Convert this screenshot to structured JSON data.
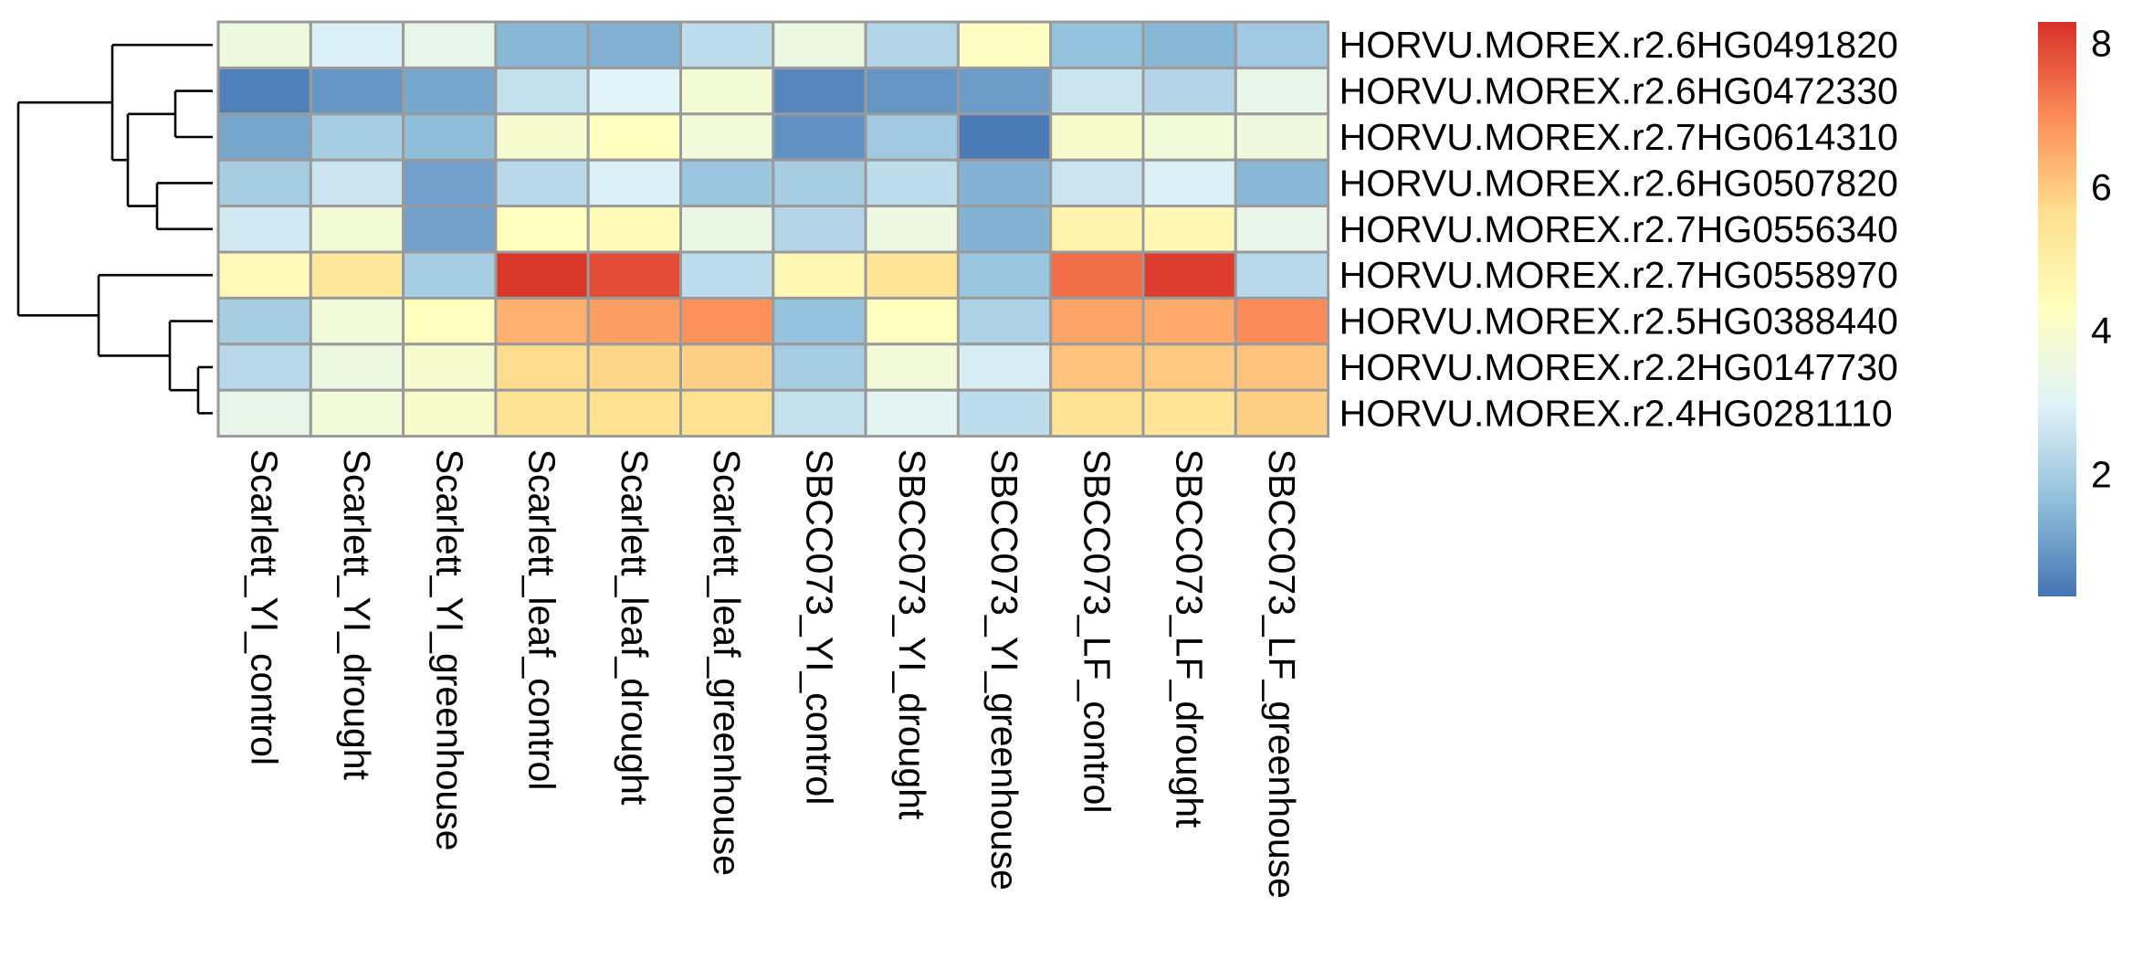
{
  "chart_data": {
    "type": "heatmap",
    "rows": [
      "HORVU.MOREX.r2.6HG0491820",
      "HORVU.MOREX.r2.6HG0472330",
      "HORVU.MOREX.r2.7HG0614310",
      "HORVU.MOREX.r2.6HG0507820",
      "HORVU.MOREX.r2.7HG0556340",
      "HORVU.MOREX.r2.7HG0558970",
      "HORVU.MOREX.r2.5HG0388440",
      "HORVU.MOREX.r2.2HG0147730",
      "HORVU.MOREX.r2.4HG0281110"
    ],
    "columns": [
      "Scarlett_YI_control",
      "Scarlett_YI_drought",
      "Scarlett_YI_greenhouse",
      "Scarlett_leaf_control",
      "Scarlett_leaf_drought",
      "Scarlett_leaf_greenhouse",
      "SBCC073_YI_control",
      "SBCC073_YI_drought",
      "SBCC073_YI_greenhouse",
      "SBCC073_LF_control",
      "SBCC073_LF_drought",
      "SBCC073_LF_greenhouse"
    ],
    "values": [
      [
        3.6,
        2.9,
        3.3,
        1.5,
        1.4,
        2.4,
        3.5,
        2.2,
        4.2,
        1.7,
        1.5,
        1.9
      ],
      [
        0.5,
        0.9,
        1.2,
        2.5,
        3.0,
        3.8,
        0.6,
        0.9,
        1.0,
        2.6,
        2.2,
        3.3
      ],
      [
        1.2,
        2.0,
        1.6,
        3.9,
        4.3,
        3.7,
        0.8,
        1.9,
        0.4,
        4.0,
        3.7,
        3.6
      ],
      [
        2.0,
        2.6,
        1.1,
        2.3,
        2.9,
        1.8,
        2.0,
        2.4,
        1.4,
        2.6,
        2.9,
        1.5
      ],
      [
        2.7,
        3.8,
        1.1,
        4.3,
        4.5,
        3.4,
        2.2,
        3.5,
        1.4,
        4.8,
        4.6,
        3.3
      ],
      [
        4.5,
        5.3,
        2.0,
        8.2,
        7.9,
        2.4,
        4.6,
        5.4,
        1.8,
        7.4,
        8.1,
        2.3
      ],
      [
        2.0,
        3.7,
        4.3,
        6.4,
        6.7,
        6.9,
        1.7,
        4.3,
        2.1,
        6.6,
        6.5,
        7.0
      ],
      [
        2.3,
        3.5,
        3.9,
        5.7,
        5.8,
        5.9,
        2.0,
        3.7,
        2.8,
        6.1,
        6.0,
        6.1
      ],
      [
        3.3,
        3.7,
        4.0,
        5.5,
        5.6,
        5.6,
        2.5,
        3.1,
        2.4,
        5.5,
        5.4,
        5.9
      ]
    ],
    "colorbar": {
      "min": 0.3,
      "max": 8.3,
      "ticks": [
        2,
        4,
        6,
        8
      ],
      "colors": [
        "#4575b4",
        "#91bfdb",
        "#e0f3f8",
        "#ffffbf",
        "#fee090",
        "#fc8d59",
        "#d73027"
      ]
    },
    "row_dendrogram": true,
    "legend": "right"
  }
}
